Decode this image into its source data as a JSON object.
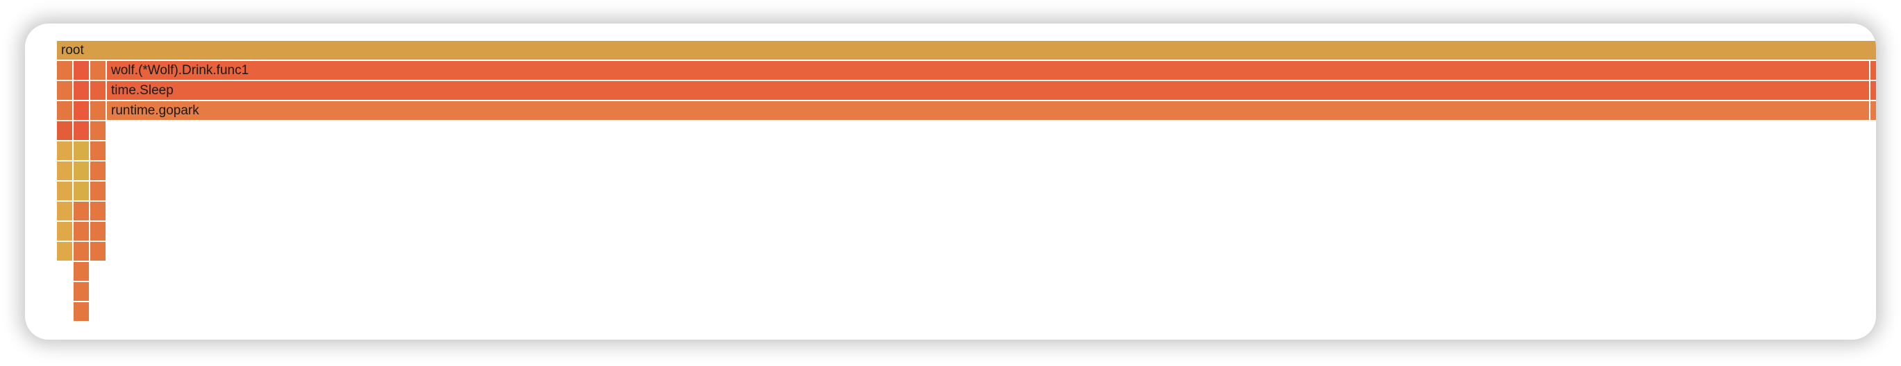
{
  "flamegraph": {
    "frames": [
      {
        "label": "root",
        "color": "#d89d47"
      },
      {
        "label": "",
        "color": "#e3773f"
      },
      {
        "label": "",
        "color": "#e85a3b"
      },
      {
        "label": "",
        "color": "#e3773f"
      },
      {
        "label": "wolf.(*Wolf).Drink.func1",
        "color": "#e8633c"
      },
      {
        "label": "",
        "color": "#e8633c"
      },
      {
        "label": "",
        "color": "#e3773f"
      },
      {
        "label": "",
        "color": "#e85a3b"
      },
      {
        "label": "",
        "color": "#e8633c"
      },
      {
        "label": "time.Sleep",
        "color": "#e8633c"
      },
      {
        "label": "",
        "color": "#e8633c"
      },
      {
        "label": "",
        "color": "#e3773f"
      },
      {
        "label": "",
        "color": "#e85a3b"
      },
      {
        "label": "",
        "color": "#e3773f"
      },
      {
        "label": "runtime.gopark",
        "color": "#e67c43"
      },
      {
        "label": "",
        "color": "#e67c43"
      },
      {
        "label": "",
        "color": "#e35e38"
      },
      {
        "label": "",
        "color": "#e85a3b"
      },
      {
        "label": "",
        "color": "#e3773f"
      },
      {
        "label": "",
        "color": "#dfa94a"
      },
      {
        "label": "",
        "color": "#d9ad45"
      },
      {
        "label": "",
        "color": "#e3773f"
      },
      {
        "label": "",
        "color": "#dfa94a"
      },
      {
        "label": "",
        "color": "#d9ad45"
      },
      {
        "label": "",
        "color": "#e3773f"
      },
      {
        "label": "",
        "color": "#dfa94a"
      },
      {
        "label": "",
        "color": "#d9ad45"
      },
      {
        "label": "",
        "color": "#e3773f"
      },
      {
        "label": "",
        "color": "#dfa94a"
      },
      {
        "label": "",
        "color": "#e3773f"
      },
      {
        "label": "",
        "color": "#e3773f"
      },
      {
        "label": "",
        "color": "#dfa94a"
      },
      {
        "label": "",
        "color": "#e3773f"
      },
      {
        "label": "",
        "color": "#e3773f"
      },
      {
        "label": "",
        "color": "#dfa94a"
      },
      {
        "label": "",
        "color": "#e3773f"
      },
      {
        "label": "",
        "color": "#e3773f"
      },
      {
        "label": "",
        "color": "#e3773f"
      },
      {
        "label": "",
        "color": "#e3773f"
      },
      {
        "label": "",
        "color": "#e3773f"
      }
    ]
  }
}
